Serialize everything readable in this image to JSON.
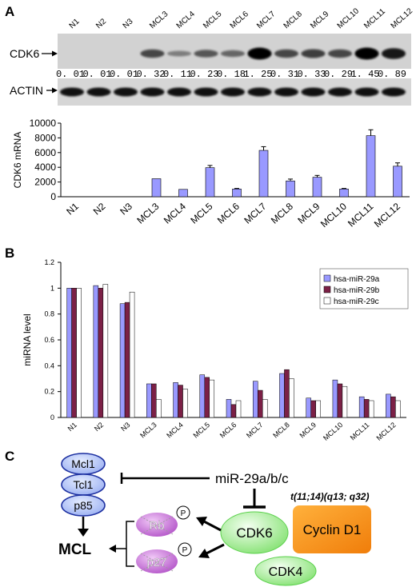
{
  "panel_a": {
    "letter": "A",
    "blot": {
      "lanes": [
        "N1",
        "N2",
        "N3",
        "MCL3",
        "MCL4",
        "MCL5",
        "MCL6",
        "MCL7",
        "MCL8",
        "MCL9",
        "MCL10",
        "MCL11",
        "MCL12"
      ],
      "cdk6_label": "CDK6",
      "actin_label": "ACTIN",
      "ratios": [
        "0. 01",
        "0. 01",
        "0. 01",
        "0. 32",
        "0. 11",
        "0. 23",
        "0. 18",
        "1. 25",
        "0. 31",
        "0. 33",
        "0. 29",
        "1. 45",
        "0. 89"
      ],
      "cdk6_band_intensity": [
        0,
        0,
        0,
        0.55,
        0.2,
        0.45,
        0.35,
        1.0,
        0.55,
        0.6,
        0.55,
        1.0,
        0.85
      ]
    }
  },
  "chart_data": [
    {
      "type": "bar",
      "ylabel": "CDK6 mRNA",
      "categories": [
        "N1",
        "N2",
        "N3",
        "MCL3",
        "MCL4",
        "MCL5",
        "MCL6",
        "MCL7",
        "MCL8",
        "MCL9",
        "MCL10",
        "MCL11",
        "MCL12"
      ],
      "values": [
        0,
        0,
        0,
        2450,
        1000,
        3950,
        1050,
        6300,
        2150,
        2650,
        1050,
        8300,
        4150
      ],
      "errors": [
        0,
        0,
        0,
        0,
        0,
        300,
        80,
        500,
        250,
        250,
        80,
        800,
        450
      ],
      "ylim": [
        0,
        10000
      ],
      "yticks": [
        "0",
        "2000",
        "4000",
        "6000",
        "8000",
        "10000"
      ],
      "color": "#9999ff"
    },
    {
      "type": "bar",
      "ylabel": "miRNA level",
      "categories": [
        "N1",
        "N2",
        "N3",
        "MCL3",
        "MCL4",
        "MCL5",
        "MCL6",
        "MCL7",
        "MCL8",
        "MCL9",
        "MCL10",
        "MCL11",
        "MCL12"
      ],
      "ylim": [
        0,
        1.2
      ],
      "yticks": [
        "0",
        "0.2",
        "0.4",
        "0.6",
        "0.8",
        "1",
        "1.2"
      ],
      "legend_position": "top-right",
      "series": [
        {
          "name": "hsa-miR-29a",
          "color": "#9999ff",
          "values": [
            1.0,
            1.02,
            0.88,
            0.26,
            0.27,
            0.33,
            0.14,
            0.28,
            0.34,
            0.15,
            0.29,
            0.16,
            0.18
          ]
        },
        {
          "name": "hsa-miR-29b",
          "color": "#7b2046",
          "values": [
            1.0,
            1.0,
            0.89,
            0.26,
            0.25,
            0.31,
            0.1,
            0.21,
            0.37,
            0.13,
            0.26,
            0.14,
            0.16
          ]
        },
        {
          "name": "hsa-miR-29c",
          "color": "#ffffff",
          "values": [
            1.0,
            1.03,
            0.97,
            0.14,
            0.22,
            0.29,
            0.13,
            0.14,
            0.3,
            0.13,
            0.24,
            0.13,
            0.13
          ]
        }
      ]
    }
  ],
  "panel_b": {
    "letter": "B"
  },
  "panel_c": {
    "letter": "C",
    "targets": [
      "Mcl1",
      "Tcl1",
      "p85"
    ],
    "mirna": "miR-29a/b/c",
    "translocation": "t(11;14)(q13; q32)",
    "cdk6": "CDK6",
    "cyclin": "Cyclin D1",
    "cdk4": "CDK4",
    "rb": "Rb",
    "p27": "p27",
    "phospho": "P",
    "mcl": "MCL"
  }
}
